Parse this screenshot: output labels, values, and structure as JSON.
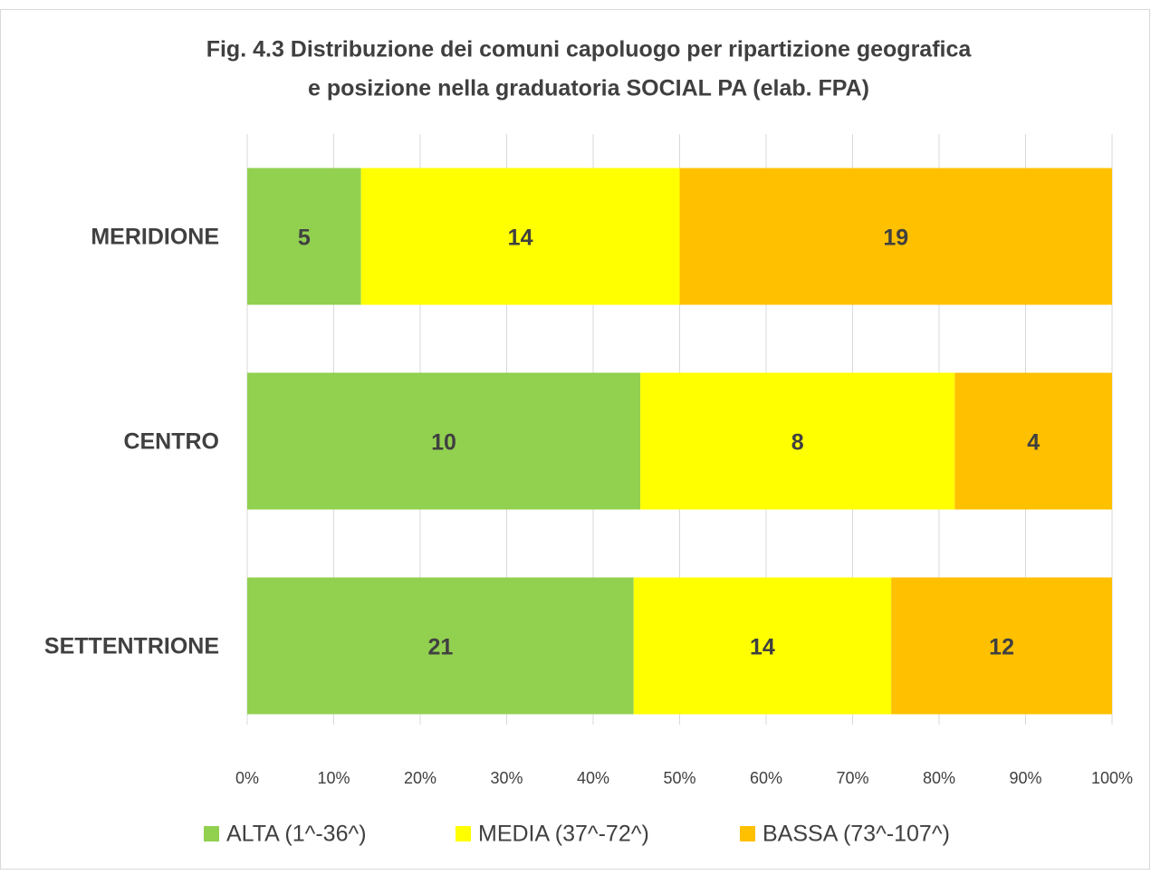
{
  "chart_data": {
    "type": "bar",
    "orientation": "horizontal",
    "stacked": "percent",
    "title": [
      "Fig. 4.3  Distribuzione dei comuni capoluogo per ripartizione geografica",
      "e posizione nella graduatoria SOCIAL PA (elab. FPA)"
    ],
    "categories": [
      "MERIDIONE",
      "CENTRO",
      "SETTENTRIONE"
    ],
    "series": [
      {
        "name": "ALTA (1^-36^)",
        "color": "#92d050",
        "values": [
          5,
          10,
          21
        ]
      },
      {
        "name": "MEDIA (37^-72^)",
        "color": "#ffff00",
        "values": [
          14,
          8,
          14
        ]
      },
      {
        "name": "BASSA (73^-107^)",
        "color": "#ffc000",
        "values": [
          19,
          4,
          12
        ]
      }
    ],
    "xlim": [
      0,
      100
    ],
    "xticks": [
      {
        "value": 0,
        "label": "0%"
      },
      {
        "value": 10,
        "label": "10%"
      },
      {
        "value": 20,
        "label": "20%"
      },
      {
        "value": 30,
        "label": "30%"
      },
      {
        "value": 40,
        "label": "40%"
      },
      {
        "value": 50,
        "label": "50%"
      },
      {
        "value": 60,
        "label": "60%"
      },
      {
        "value": 70,
        "label": "70%"
      },
      {
        "value": 80,
        "label": "80%"
      },
      {
        "value": 90,
        "label": "90%"
      },
      {
        "value": 100,
        "label": "100%"
      }
    ],
    "grid": true,
    "legend": "bottom"
  }
}
